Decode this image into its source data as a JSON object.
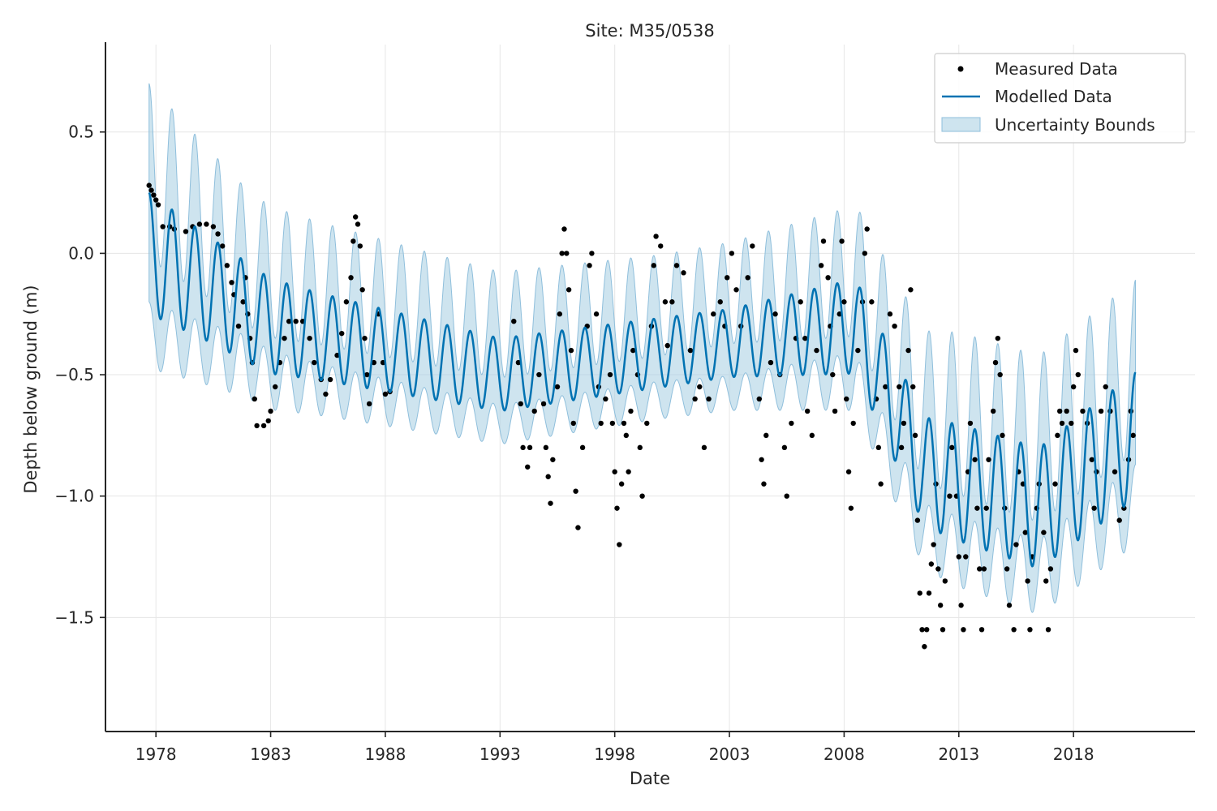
{
  "chart_data": {
    "type": "line",
    "title": "Site: M35/0538",
    "xlabel": "Date",
    "ylabel": "Depth below ground (m)",
    "xlim": [
      1975.8,
      2023.3
    ],
    "ylim": [
      -1.97,
      0.86
    ],
    "xticks": [
      1978,
      1983,
      1988,
      1993,
      1998,
      2003,
      2008,
      2013,
      2018
    ],
    "xtick_labels": [
      "1978",
      "1983",
      "1988",
      "1993",
      "1998",
      "2003",
      "2008",
      "2013",
      "2018"
    ],
    "yticks": [
      0.5,
      0.0,
      -0.5,
      -1.0,
      -1.5
    ],
    "ytick_labels": [
      "0.5",
      "0.0",
      "−0.5",
      "−1.0",
      "−1.5"
    ],
    "grid": true,
    "legend_position": "top-right",
    "colors": {
      "measured": "#000000",
      "modelled": "#0072b2",
      "band_fill": "#a6cde2",
      "band_edge": "#8fbfdc",
      "grid": "#e6e6e6",
      "axis": "#262626"
    },
    "series": [
      {
        "name": "Measured Data",
        "kind": "scatter",
        "points": [
          [
            1977.7,
            0.28
          ],
          [
            1977.8,
            0.26
          ],
          [
            1977.9,
            0.24
          ],
          [
            1978.0,
            0.22
          ],
          [
            1978.1,
            0.2
          ],
          [
            1978.3,
            0.11
          ],
          [
            1978.6,
            0.11
          ],
          [
            1978.8,
            0.1
          ],
          [
            1979.3,
            0.09
          ],
          [
            1979.6,
            0.11
          ],
          [
            1979.9,
            0.12
          ],
          [
            1980.2,
            0.12
          ],
          [
            1980.5,
            0.11
          ],
          [
            1980.7,
            0.08
          ],
          [
            1980.9,
            0.03
          ],
          [
            1981.1,
            -0.05
          ],
          [
            1981.3,
            -0.12
          ],
          [
            1981.4,
            -0.17
          ],
          [
            1981.6,
            -0.3
          ],
          [
            1981.8,
            -0.2
          ],
          [
            1981.9,
            -0.1
          ],
          [
            1982.0,
            -0.25
          ],
          [
            1982.1,
            -0.35
          ],
          [
            1982.2,
            -0.45
          ],
          [
            1982.3,
            -0.6
          ],
          [
            1982.4,
            -0.71
          ],
          [
            1982.7,
            -0.71
          ],
          [
            1982.9,
            -0.69
          ],
          [
            1983.0,
            -0.65
          ],
          [
            1983.2,
            -0.55
          ],
          [
            1983.4,
            -0.45
          ],
          [
            1983.6,
            -0.35
          ],
          [
            1983.8,
            -0.28
          ],
          [
            1984.1,
            -0.28
          ],
          [
            1984.4,
            -0.28
          ],
          [
            1984.7,
            -0.35
          ],
          [
            1984.9,
            -0.45
          ],
          [
            1985.2,
            -0.52
          ],
          [
            1985.4,
            -0.58
          ],
          [
            1985.6,
            -0.52
          ],
          [
            1985.9,
            -0.42
          ],
          [
            1986.1,
            -0.33
          ],
          [
            1986.3,
            -0.2
          ],
          [
            1986.5,
            -0.1
          ],
          [
            1986.6,
            0.05
          ],
          [
            1986.7,
            0.15
          ],
          [
            1986.8,
            0.12
          ],
          [
            1986.9,
            0.03
          ],
          [
            1987.0,
            -0.15
          ],
          [
            1987.1,
            -0.35
          ],
          [
            1987.2,
            -0.5
          ],
          [
            1987.3,
            -0.62
          ],
          [
            1987.5,
            -0.45
          ],
          [
            1987.7,
            -0.25
          ],
          [
            1987.9,
            -0.45
          ],
          [
            1988.0,
            -0.58
          ],
          [
            1988.2,
            -0.57
          ],
          [
            1993.6,
            -0.28
          ],
          [
            1993.8,
            -0.45
          ],
          [
            1993.9,
            -0.62
          ],
          [
            1994.0,
            -0.8
          ],
          [
            1994.2,
            -0.88
          ],
          [
            1994.3,
            -0.8
          ],
          [
            1994.5,
            -0.65
          ],
          [
            1994.7,
            -0.5
          ],
          [
            1994.9,
            -0.62
          ],
          [
            1995.0,
            -0.8
          ],
          [
            1995.1,
            -0.92
          ],
          [
            1995.2,
            -1.03
          ],
          [
            1995.3,
            -0.85
          ],
          [
            1995.5,
            -0.55
          ],
          [
            1995.6,
            -0.25
          ],
          [
            1995.7,
            0.0
          ],
          [
            1995.8,
            0.1
          ],
          [
            1995.9,
            0.0
          ],
          [
            1996.0,
            -0.15
          ],
          [
            1996.1,
            -0.4
          ],
          [
            1996.2,
            -0.7
          ],
          [
            1996.3,
            -0.98
          ],
          [
            1996.4,
            -1.13
          ],
          [
            1996.6,
            -0.8
          ],
          [
            1996.8,
            -0.3
          ],
          [
            1996.9,
            -0.05
          ],
          [
            1997.0,
            0.0
          ],
          [
            1997.2,
            -0.25
          ],
          [
            1997.3,
            -0.55
          ],
          [
            1997.4,
            -0.7
          ],
          [
            1997.6,
            -0.6
          ],
          [
            1997.8,
            -0.5
          ],
          [
            1997.9,
            -0.7
          ],
          [
            1998.0,
            -0.9
          ],
          [
            1998.1,
            -1.05
          ],
          [
            1998.2,
            -1.2
          ],
          [
            1998.3,
            -0.95
          ],
          [
            1998.4,
            -0.7
          ],
          [
            1998.5,
            -0.75
          ],
          [
            1998.6,
            -0.9
          ],
          [
            1998.7,
            -0.65
          ],
          [
            1998.8,
            -0.4
          ],
          [
            1999.0,
            -0.5
          ],
          [
            1999.1,
            -0.8
          ],
          [
            1999.2,
            -1.0
          ],
          [
            1999.4,
            -0.7
          ],
          [
            1999.6,
            -0.3
          ],
          [
            1999.7,
            -0.05
          ],
          [
            1999.8,
            0.07
          ],
          [
            2000.0,
            0.03
          ],
          [
            2000.2,
            -0.2
          ],
          [
            2000.3,
            -0.38
          ],
          [
            2000.5,
            -0.2
          ],
          [
            2000.7,
            -0.05
          ],
          [
            2001.0,
            -0.08
          ],
          [
            2001.3,
            -0.4
          ],
          [
            2001.5,
            -0.6
          ],
          [
            2001.7,
            -0.55
          ],
          [
            2001.9,
            -0.8
          ],
          [
            2002.1,
            -0.6
          ],
          [
            2002.3,
            -0.25
          ],
          [
            2002.6,
            -0.2
          ],
          [
            2002.8,
            -0.3
          ],
          [
            2002.9,
            -0.1
          ],
          [
            2003.1,
            0.0
          ],
          [
            2003.3,
            -0.15
          ],
          [
            2003.5,
            -0.3
          ],
          [
            2003.8,
            -0.1
          ],
          [
            2004.0,
            0.03
          ],
          [
            2004.3,
            -0.6
          ],
          [
            2004.4,
            -0.85
          ],
          [
            2004.5,
            -0.95
          ],
          [
            2004.6,
            -0.75
          ],
          [
            2004.8,
            -0.45
          ],
          [
            2005.0,
            -0.25
          ],
          [
            2005.2,
            -0.5
          ],
          [
            2005.4,
            -0.8
          ],
          [
            2005.5,
            -1.0
          ],
          [
            2005.7,
            -0.7
          ],
          [
            2005.9,
            -0.35
          ],
          [
            2006.1,
            -0.2
          ],
          [
            2006.3,
            -0.35
          ],
          [
            2006.4,
            -0.65
          ],
          [
            2006.6,
            -0.75
          ],
          [
            2006.8,
            -0.4
          ],
          [
            2007.0,
            -0.05
          ],
          [
            2007.1,
            0.05
          ],
          [
            2007.3,
            -0.1
          ],
          [
            2007.4,
            -0.3
          ],
          [
            2007.5,
            -0.5
          ],
          [
            2007.6,
            -0.65
          ],
          [
            2007.8,
            -0.25
          ],
          [
            2007.9,
            0.05
          ],
          [
            2008.0,
            -0.2
          ],
          [
            2008.1,
            -0.6
          ],
          [
            2008.2,
            -0.9
          ],
          [
            2008.3,
            -1.05
          ],
          [
            2008.4,
            -0.7
          ],
          [
            2008.6,
            -0.4
          ],
          [
            2008.8,
            -0.2
          ],
          [
            2008.9,
            0.0
          ],
          [
            2009.0,
            0.1
          ],
          [
            2009.2,
            -0.2
          ],
          [
            2009.4,
            -0.6
          ],
          [
            2009.5,
            -0.8
          ],
          [
            2009.6,
            -0.95
          ],
          [
            2009.8,
            -0.55
          ],
          [
            2010.0,
            -0.25
          ],
          [
            2010.2,
            -0.3
          ],
          [
            2010.4,
            -0.55
          ],
          [
            2010.5,
            -0.8
          ],
          [
            2010.6,
            -0.7
          ],
          [
            2010.8,
            -0.4
          ],
          [
            2010.9,
            -0.15
          ],
          [
            2011.0,
            -0.55
          ],
          [
            2011.1,
            -0.75
          ],
          [
            2011.2,
            -1.1
          ],
          [
            2011.3,
            -1.4
          ],
          [
            2011.4,
            -1.55
          ],
          [
            2011.5,
            -1.62
          ],
          [
            2011.6,
            -1.55
          ],
          [
            2011.7,
            -1.4
          ],
          [
            2011.8,
            -1.28
          ],
          [
            2011.9,
            -1.2
          ],
          [
            2012.0,
            -0.95
          ],
          [
            2012.1,
            -1.3
          ],
          [
            2012.2,
            -1.45
          ],
          [
            2012.3,
            -1.55
          ],
          [
            2012.4,
            -1.35
          ],
          [
            2012.6,
            -1.0
          ],
          [
            2012.7,
            -0.8
          ],
          [
            2012.9,
            -1.0
          ],
          [
            2013.0,
            -1.25
          ],
          [
            2013.1,
            -1.45
          ],
          [
            2013.2,
            -1.55
          ],
          [
            2013.3,
            -1.25
          ],
          [
            2013.4,
            -0.9
          ],
          [
            2013.5,
            -0.7
          ],
          [
            2013.7,
            -0.85
          ],
          [
            2013.8,
            -1.05
          ],
          [
            2013.9,
            -1.3
          ],
          [
            2014.0,
            -1.55
          ],
          [
            2014.1,
            -1.3
          ],
          [
            2014.2,
            -1.05
          ],
          [
            2014.3,
            -0.85
          ],
          [
            2014.5,
            -0.65
          ],
          [
            2014.6,
            -0.45
          ],
          [
            2014.7,
            -0.35
          ],
          [
            2014.8,
            -0.5
          ],
          [
            2014.9,
            -0.75
          ],
          [
            2015.0,
            -1.05
          ],
          [
            2015.1,
            -1.3
          ],
          [
            2015.2,
            -1.45
          ],
          [
            2015.4,
            -1.55
          ],
          [
            2015.5,
            -1.2
          ],
          [
            2015.6,
            -0.9
          ],
          [
            2015.8,
            -0.95
          ],
          [
            2015.9,
            -1.15
          ],
          [
            2016.0,
            -1.35
          ],
          [
            2016.1,
            -1.55
          ],
          [
            2016.2,
            -1.25
          ],
          [
            2016.4,
            -1.05
          ],
          [
            2016.5,
            -0.95
          ],
          [
            2016.7,
            -1.15
          ],
          [
            2016.8,
            -1.35
          ],
          [
            2016.9,
            -1.55
          ],
          [
            2017.0,
            -1.3
          ],
          [
            2017.2,
            -0.95
          ],
          [
            2017.3,
            -0.75
          ],
          [
            2017.4,
            -0.65
          ],
          [
            2017.5,
            -0.7
          ],
          [
            2017.7,
            -0.65
          ],
          [
            2017.9,
            -0.7
          ],
          [
            2018.0,
            -0.55
          ],
          [
            2018.1,
            -0.4
          ],
          [
            2018.2,
            -0.5
          ],
          [
            2018.4,
            -0.65
          ],
          [
            2018.6,
            -0.7
          ],
          [
            2018.8,
            -0.85
          ],
          [
            2018.9,
            -1.05
          ],
          [
            2019.0,
            -0.9
          ],
          [
            2019.2,
            -0.65
          ],
          [
            2019.4,
            -0.55
          ],
          [
            2019.6,
            -0.65
          ],
          [
            2019.8,
            -0.9
          ],
          [
            2020.0,
            -1.1
          ],
          [
            2020.2,
            -1.05
          ],
          [
            2020.4,
            -0.85
          ],
          [
            2020.5,
            -0.65
          ],
          [
            2020.6,
            -0.75
          ]
        ]
      },
      {
        "name": "Modelled Data",
        "kind": "line",
        "model": {
          "t0": 1977.7,
          "t1": 2020.7,
          "period_years": 1.0,
          "peak_phase": 0.0,
          "trend_knots": [
            [
              1977.7,
              0.0
            ],
            [
              1983.0,
              -0.3
            ],
            [
              1993.0,
              -0.5
            ],
            [
              2003.0,
              -0.37
            ],
            [
              2008.5,
              -0.3
            ],
            [
              2011.5,
              -0.9
            ],
            [
              2016.5,
              -1.05
            ],
            [
              2020.7,
              -0.75
            ]
          ],
          "amplitude_knots": [
            [
              1977.7,
              0.25
            ],
            [
              1980.0,
              0.22
            ],
            [
              1985.0,
              0.18
            ],
            [
              1993.0,
              0.15
            ],
            [
              2003.0,
              0.14
            ],
            [
              2008.0,
              0.19
            ],
            [
              2013.0,
              0.24
            ],
            [
              2020.7,
              0.26
            ]
          ],
          "band_halfwidth_knots": [
            [
              1977.7,
              0.45
            ],
            [
              1982.0,
              0.3
            ],
            [
              1990.0,
              0.28
            ],
            [
              2000.0,
              0.26
            ],
            [
              2008.0,
              0.3
            ],
            [
              2013.0,
              0.38
            ],
            [
              2020.7,
              0.38
            ]
          ]
        }
      },
      {
        "name": "Uncertainty Bounds",
        "kind": "band"
      }
    ]
  }
}
